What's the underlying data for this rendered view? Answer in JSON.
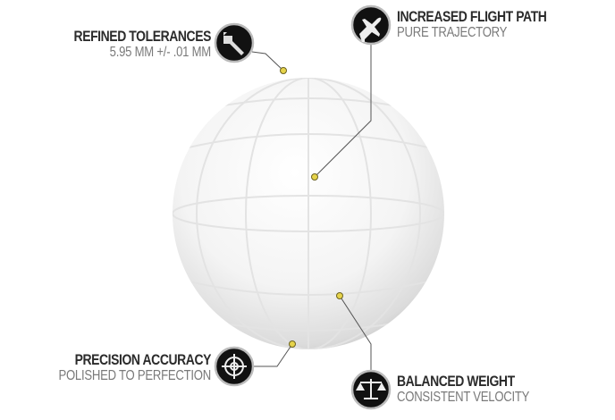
{
  "features": [
    {
      "title": "REFINED TOLERANCES",
      "subtitle": "5.95 MM +/- .01 MM",
      "icon": "caliper-icon"
    },
    {
      "title": "INCREASED FLIGHT PATH",
      "subtitle": "PURE TRAJECTORY",
      "icon": "airplane-icon"
    },
    {
      "title": "PRECISION ACCURACY",
      "subtitle": "POLISHED TO PERFECTION",
      "icon": "crosshair-icon"
    },
    {
      "title": "BALANCED WEIGHT",
      "subtitle": "CONSISTENT VELOCITY",
      "icon": "scales-icon"
    }
  ],
  "colors": {
    "dot": "#e6d34a",
    "icon_bg": "#111111",
    "title": "#2b2b2b",
    "subtitle": "#7a7a7a"
  }
}
